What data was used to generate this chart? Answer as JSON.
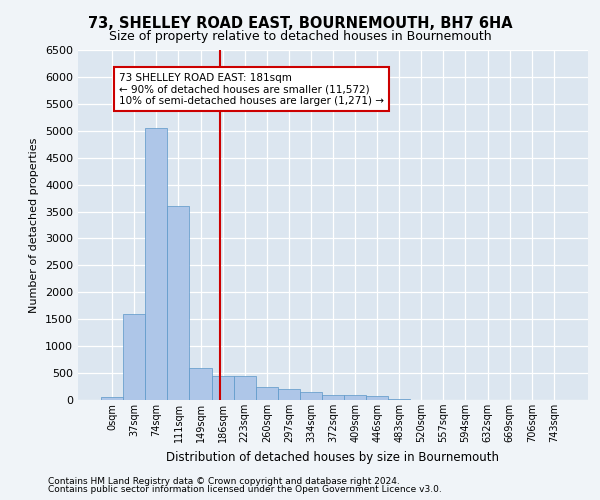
{
  "title": "73, SHELLEY ROAD EAST, BOURNEMOUTH, BH7 6HA",
  "subtitle": "Size of property relative to detached houses in Bournemouth",
  "xlabel": "Distribution of detached houses by size in Bournemouth",
  "ylabel": "Number of detached properties",
  "bar_values": [
    50,
    1600,
    5050,
    3600,
    600,
    450,
    450,
    250,
    200,
    150,
    100,
    100,
    70,
    10,
    0,
    0,
    0,
    0,
    0,
    0,
    0
  ],
  "bar_labels": [
    "0sqm",
    "37sqm",
    "74sqm",
    "111sqm",
    "149sqm",
    "186sqm",
    "223sqm",
    "260sqm",
    "297sqm",
    "334sqm",
    "372sqm",
    "409sqm",
    "446sqm",
    "483sqm",
    "520sqm",
    "557sqm",
    "594sqm",
    "632sqm",
    "669sqm",
    "706sqm",
    "743sqm"
  ],
  "bar_color": "#aec6e8",
  "bar_edge_color": "#5a96c8",
  "red_line_x": 4.865,
  "ylim": [
    0,
    6500
  ],
  "yticks": [
    0,
    500,
    1000,
    1500,
    2000,
    2500,
    3000,
    3500,
    4000,
    4500,
    5000,
    5500,
    6000,
    6500
  ],
  "annotation_text": "73 SHELLEY ROAD EAST: 181sqm\n← 90% of detached houses are smaller (11,572)\n10% of semi-detached houses are larger (1,271) →",
  "annotation_box_color": "#ffffff",
  "annotation_box_edge": "#cc0000",
  "bg_color": "#dce6f0",
  "grid_color": "#ffffff",
  "fig_bg_color": "#f0f4f8",
  "footer_line1": "Contains HM Land Registry data © Crown copyright and database right 2024.",
  "footer_line2": "Contains public sector information licensed under the Open Government Licence v3.0."
}
